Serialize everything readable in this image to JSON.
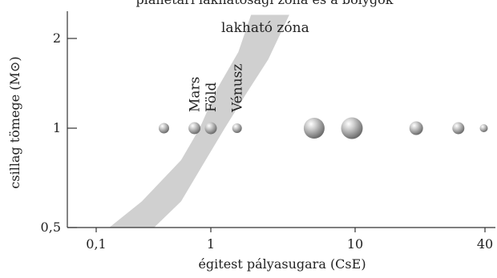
{
  "chart_data": {
    "type": "scatter",
    "title": "",
    "title_fragment": "planetári lakhatósági zóna és a bolygók",
    "xlabel": "égitest pályasugara (CsE)",
    "ylabel": "csillag tömege (M⊙)",
    "x_scale": "log",
    "y_scale": "log",
    "xlim": [
      0.05,
      50
    ],
    "ylim": [
      0.5,
      2.5
    ],
    "x_ticks": [
      0.1,
      1,
      10,
      40
    ],
    "x_tick_labels": [
      "0,1",
      "1",
      "10",
      "40"
    ],
    "y_ticks": [
      0.5,
      1,
      2
    ],
    "y_tick_labels": [
      "0,5",
      "1",
      "2"
    ],
    "grid": false,
    "zone": {
      "label": "lakható zóna",
      "color": "#d0d0d0",
      "inner_edge": [
        [
          0.13,
          0.5
        ],
        [
          0.25,
          0.6
        ],
        [
          0.55,
          0.8
        ],
        [
          0.8,
          1.0
        ],
        [
          1.1,
          1.35
        ],
        [
          1.55,
          1.8
        ],
        [
          1.9,
          2.4
        ]
      ],
      "outer_edge": [
        [
          0.32,
          0.5
        ],
        [
          0.55,
          0.6
        ],
        [
          0.9,
          0.8
        ],
        [
          1.25,
          1.0
        ],
        [
          1.75,
          1.3
        ],
        [
          2.5,
          1.7
        ],
        [
          3.5,
          2.4
        ]
      ]
    },
    "planets": [
      {
        "x": 0.39,
        "y": 1,
        "size": 0.65,
        "label": ""
      },
      {
        "x": 0.72,
        "y": 1,
        "size": 0.75,
        "label": "Mars"
      },
      {
        "x": 1.0,
        "y": 1,
        "size": 0.75,
        "label": "Föld"
      },
      {
        "x": 1.52,
        "y": 1,
        "size": 0.6,
        "label": "Vénusz"
      },
      {
        "x": 5.2,
        "y": 1,
        "size": 1.3,
        "label": ""
      },
      {
        "x": 9.5,
        "y": 1,
        "size": 1.35,
        "label": ""
      },
      {
        "x": 19.2,
        "y": 1,
        "size": 0.85,
        "label": ""
      },
      {
        "x": 30.1,
        "y": 1,
        "size": 0.75,
        "label": ""
      },
      {
        "x": 39.5,
        "y": 1,
        "size": 0.5,
        "label": ""
      }
    ]
  }
}
